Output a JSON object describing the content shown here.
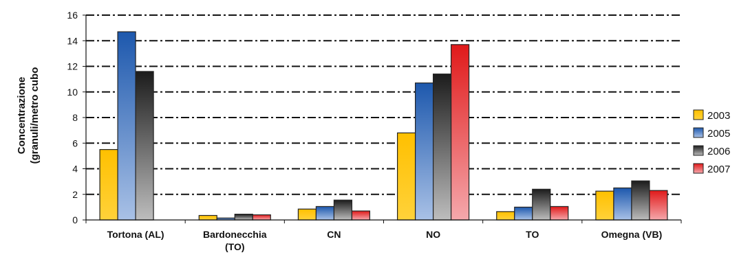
{
  "chart_data": {
    "type": "bar",
    "title": "",
    "xlabel": "",
    "ylabel_lines": [
      "Concentrazione",
      "(granuli/metro cubo"
    ],
    "ylim": [
      0,
      16
    ],
    "yticks": [
      "0",
      "2",
      "4",
      "6",
      "8",
      "10",
      "12",
      "14",
      "16"
    ],
    "grid": "horizontal dash-dot",
    "legend_position": "right",
    "categories": [
      [
        "Tortona (AL)"
      ],
      [
        "Bardonecchia",
        "(TO)"
      ],
      [
        "CN"
      ],
      [
        "NO"
      ],
      [
        "TO"
      ],
      [
        "Omegna (VB)"
      ]
    ],
    "series": [
      {
        "name": "2003",
        "color": "#ffc000",
        "values": [
          5.5,
          0.35,
          0.85,
          6.8,
          0.65,
          2.25
        ]
      },
      {
        "name": "2005",
        "color": "#1f5fb4",
        "values": [
          14.7,
          0.15,
          1.05,
          10.7,
          1.0,
          2.5
        ]
      },
      {
        "name": "2006",
        "color": "#303030",
        "values": [
          11.6,
          0.45,
          1.55,
          11.4,
          2.4,
          3.05
        ]
      },
      {
        "name": "2007",
        "color": "#e02020",
        "values": [
          0,
          0.4,
          0.7,
          13.7,
          1.05,
          2.3
        ]
      }
    ]
  }
}
